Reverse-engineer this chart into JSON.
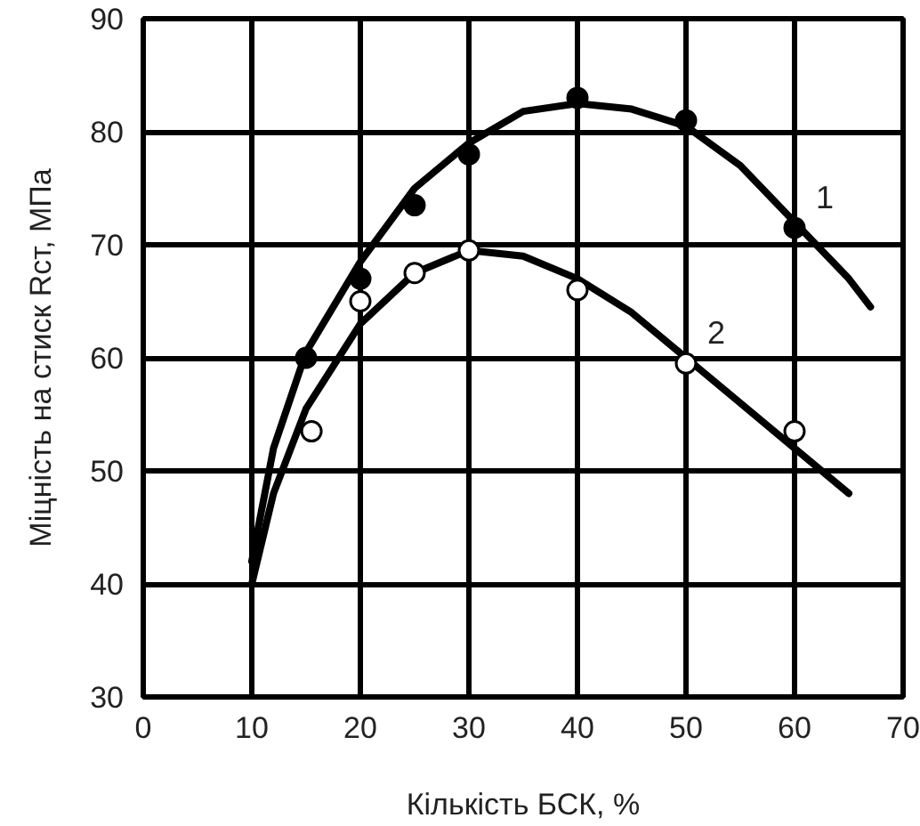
{
  "chart_data": {
    "type": "line",
    "xlabel": "Кількість БСК, %",
    "ylabel": "Міцність на стиск Rст, МПа",
    "xlim": [
      0,
      70
    ],
    "ylim": [
      30,
      90
    ],
    "xticks": [
      0,
      10,
      20,
      30,
      40,
      50,
      60,
      70
    ],
    "yticks": [
      30,
      40,
      50,
      60,
      70,
      80,
      90
    ],
    "grid": true,
    "series": [
      {
        "name": "1",
        "marker": "none",
        "color": "#000000",
        "x": [
          10,
          12,
          15,
          20,
          25,
          30,
          35,
          40,
          45,
          50,
          55,
          60,
          65,
          67
        ],
        "values": [
          42,
          52,
          60.5,
          68.5,
          75,
          79,
          81.8,
          82.5,
          82,
          80.5,
          77,
          72,
          67,
          64.5
        ]
      },
      {
        "name": "2",
        "marker": "none",
        "color": "#000000",
        "x": [
          10,
          12,
          15,
          20,
          25,
          30,
          35,
          40,
          45,
          50,
          55,
          60,
          65
        ],
        "values": [
          40,
          48,
          55.5,
          63,
          67.5,
          69.5,
          69,
          67,
          64,
          60,
          56,
          52,
          48
        ]
      },
      {
        "type": "scatter",
        "marker": "circle",
        "color": "#000000",
        "x": [
          15,
          20,
          25,
          30,
          40,
          50,
          60
        ],
        "values": [
          60,
          67,
          73.5,
          78,
          83,
          81,
          71.5
        ]
      },
      {
        "type": "scatter",
        "marker": "circle",
        "color": "#ffffff",
        "x": [
          15.5,
          20,
          25,
          30,
          40,
          50,
          60
        ],
        "values": [
          53.5,
          65,
          67.5,
          69.5,
          66,
          59.5,
          53.5
        ]
      }
    ]
  }
}
